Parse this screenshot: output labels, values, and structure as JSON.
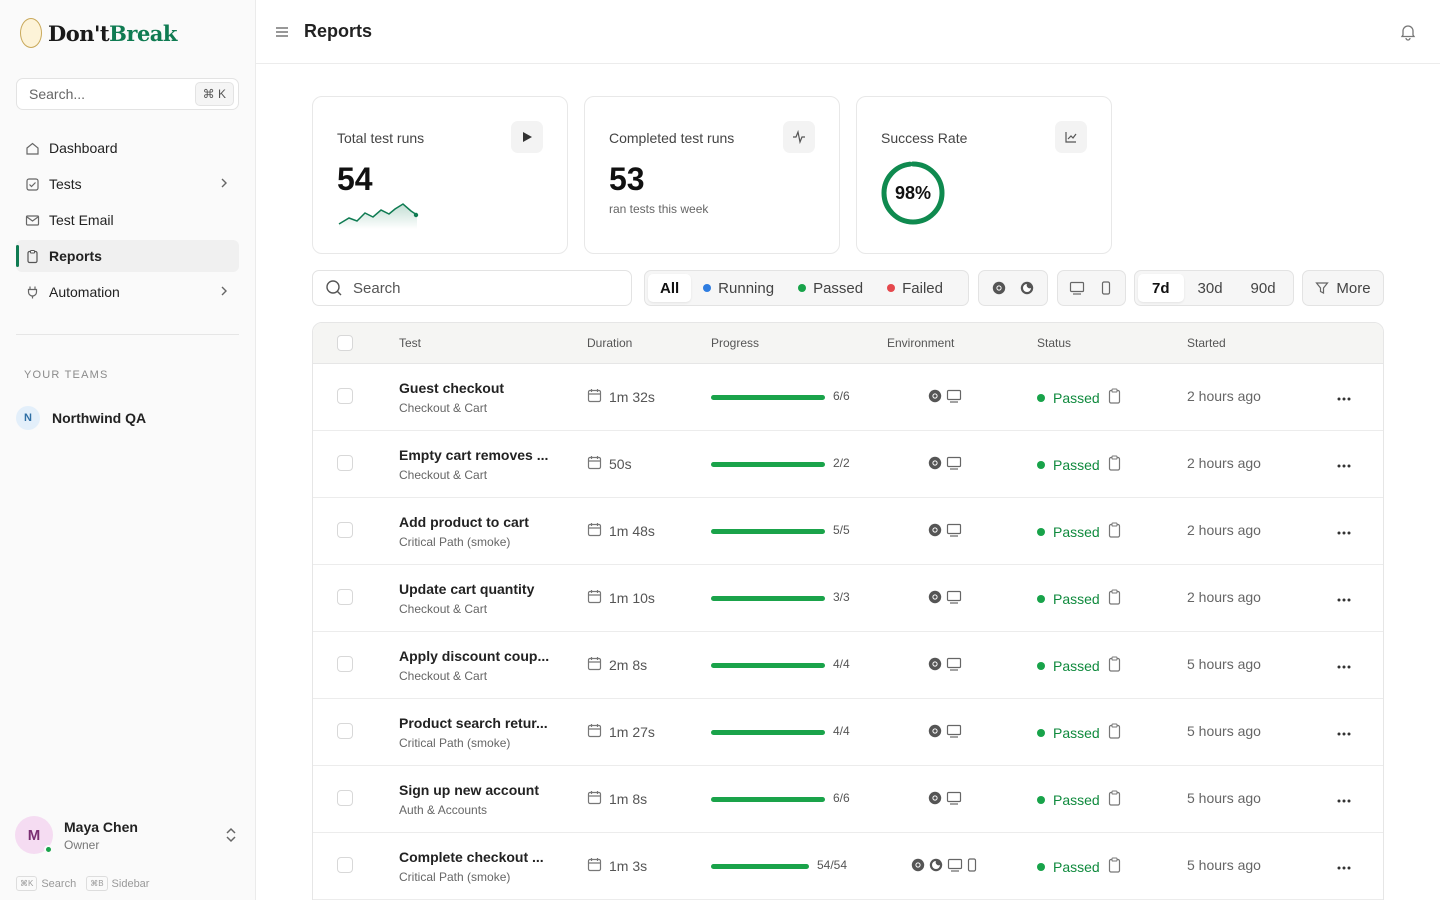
{
  "brand": {
    "name_part1": "Don't",
    "name_part2": "Break",
    "accent": "#0f7b52"
  },
  "sidebar": {
    "search_placeholder": "Search...",
    "search_shortcut": "⌘ K",
    "nav": [
      {
        "label": "Dashboard",
        "icon": "home-icon",
        "active": false,
        "has_children": false
      },
      {
        "label": "Tests",
        "icon": "checkbox-icon",
        "active": false,
        "has_children": true
      },
      {
        "label": "Test Email",
        "icon": "mail-icon",
        "active": false,
        "has_children": false
      },
      {
        "label": "Reports",
        "icon": "clipboard-icon",
        "active": true,
        "has_children": false
      },
      {
        "label": "Automation",
        "icon": "plug-icon",
        "active": false,
        "has_children": true
      }
    ],
    "teams_label": "YOUR TEAMS",
    "team": {
      "initial": "N",
      "name": "Northwind QA"
    },
    "user": {
      "initial": "M",
      "name": "Maya Chen",
      "role": "Owner"
    },
    "hints": [
      {
        "key": "⌘K",
        "label": "Search"
      },
      {
        "key": "⌘B",
        "label": "Sidebar"
      }
    ]
  },
  "header": {
    "title": "Reports"
  },
  "stats": {
    "total": {
      "label": "Total test runs",
      "value": "54"
    },
    "completed": {
      "label": "Completed test runs",
      "value": "53",
      "sub": "ran tests this week"
    },
    "success": {
      "label": "Success Rate",
      "value": "98%",
      "fraction": 0.98
    }
  },
  "toolbar": {
    "search_placeholder": "Search",
    "filters": [
      {
        "label": "All",
        "color": null,
        "active": true
      },
      {
        "label": "Running",
        "color": "#2f7de1",
        "active": false
      },
      {
        "label": "Passed",
        "color": "#18a34a",
        "active": false
      },
      {
        "label": "Failed",
        "color": "#e5484d",
        "active": false
      }
    ],
    "ranges": [
      {
        "label": "7d",
        "active": true
      },
      {
        "label": "30d",
        "active": false
      },
      {
        "label": "90d",
        "active": false
      }
    ],
    "more_label": "More"
  },
  "table": {
    "columns": [
      "Test",
      "Duration",
      "Progress",
      "Environment",
      "Status",
      "Started"
    ],
    "rows": [
      {
        "name": "Guest checkout",
        "suite": "Checkout & Cart",
        "duration": "1m 32s",
        "progress": "6/6",
        "progress_fraction": 1,
        "env": [
          "chrome-icon",
          "desktop-icon"
        ],
        "status": "Passed",
        "started": "2 hours ago"
      },
      {
        "name": "Empty cart removes ...",
        "suite": "Checkout & Cart",
        "duration": "50s",
        "progress": "2/2",
        "progress_fraction": 1,
        "env": [
          "chrome-icon",
          "desktop-icon"
        ],
        "status": "Passed",
        "started": "2 hours ago"
      },
      {
        "name": "Add product to cart",
        "suite": "Critical Path (smoke)",
        "duration": "1m 48s",
        "progress": "5/5",
        "progress_fraction": 1,
        "env": [
          "chrome-icon",
          "desktop-icon"
        ],
        "status": "Passed",
        "started": "2 hours ago"
      },
      {
        "name": "Update cart quantity",
        "suite": "Checkout & Cart",
        "duration": "1m 10s",
        "progress": "3/3",
        "progress_fraction": 1,
        "env": [
          "chrome-icon",
          "desktop-icon"
        ],
        "status": "Passed",
        "started": "2 hours ago"
      },
      {
        "name": "Apply discount coup...",
        "suite": "Checkout & Cart",
        "duration": "2m 8s",
        "progress": "4/4",
        "progress_fraction": 1,
        "env": [
          "chrome-icon",
          "desktop-icon"
        ],
        "status": "Passed",
        "started": "5 hours ago"
      },
      {
        "name": "Product search retur...",
        "suite": "Critical Path (smoke)",
        "duration": "1m 27s",
        "progress": "4/4",
        "progress_fraction": 1,
        "env": [
          "chrome-icon",
          "desktop-icon"
        ],
        "status": "Passed",
        "started": "5 hours ago"
      },
      {
        "name": "Sign up new account",
        "suite": "Auth & Accounts",
        "duration": "1m 8s",
        "progress": "6/6",
        "progress_fraction": 1,
        "env": [
          "chrome-icon",
          "desktop-icon"
        ],
        "status": "Passed",
        "started": "5 hours ago"
      },
      {
        "name": "Complete checkout ...",
        "suite": "Critical Path (smoke)",
        "duration": "1m 3s",
        "progress": "54/54",
        "progress_fraction": 1,
        "env": [
          "chrome-icon",
          "firefox-icon",
          "desktop-icon",
          "mobile-icon"
        ],
        "status": "Passed",
        "started": "5 hours ago"
      }
    ]
  }
}
